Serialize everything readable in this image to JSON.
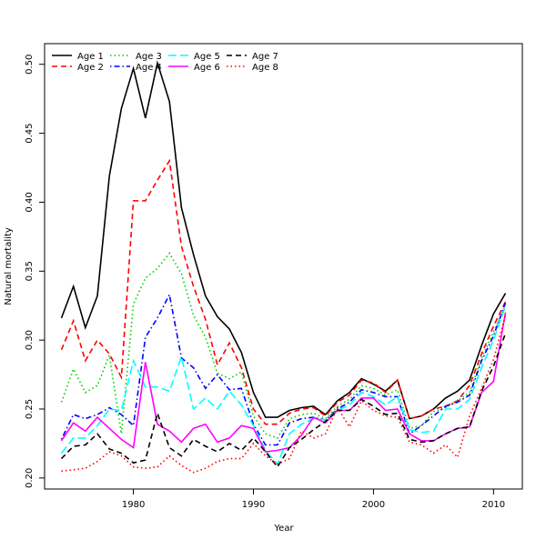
{
  "chart_data": {
    "type": "line",
    "title": "",
    "xlabel": "Year",
    "ylabel": "Natural mortality",
    "xlim": [
      1972.6,
      2012.4
    ],
    "ylim": [
      0.192,
      0.515
    ],
    "xticks": [
      1980,
      1990,
      2000,
      2010
    ],
    "yticks": [
      "0.20",
      "0.25",
      "0.30",
      "0.35",
      "0.40",
      "0.45",
      "0.50"
    ],
    "grid": false,
    "legend_position": "top-left",
    "x": [
      1974,
      1975,
      1976,
      1977,
      1978,
      1979,
      1980,
      1981,
      1982,
      1983,
      1984,
      1985,
      1986,
      1987,
      1988,
      1989,
      1990,
      1991,
      1992,
      1993,
      1994,
      1995,
      1996,
      1997,
      1998,
      1999,
      2000,
      2001,
      2002,
      2003,
      2004,
      2005,
      2006,
      2007,
      2008,
      2009,
      2010,
      2011
    ],
    "series": [
      {
        "name": "Age 1",
        "color": "#000000",
        "dash": "solid",
        "values": [
          0.316,
          0.339,
          0.309,
          0.332,
          0.419,
          0.468,
          0.497,
          0.461,
          0.501,
          0.473,
          0.396,
          0.362,
          0.332,
          0.317,
          0.308,
          0.291,
          0.262,
          0.244,
          0.244,
          0.249,
          0.251,
          0.252,
          0.246,
          0.256,
          0.262,
          0.272,
          0.268,
          0.263,
          0.271,
          0.243,
          0.245,
          0.25,
          0.258,
          0.263,
          0.271,
          0.296,
          0.319,
          0.334
        ]
      },
      {
        "name": "Age 2",
        "color": "#ff0000",
        "dash": "dashed",
        "values": [
          0.293,
          0.314,
          0.285,
          0.3,
          0.29,
          0.273,
          0.401,
          0.401,
          0.416,
          0.43,
          0.368,
          0.339,
          0.315,
          0.282,
          0.298,
          0.28,
          0.25,
          0.239,
          0.239,
          0.247,
          0.25,
          0.251,
          0.245,
          0.255,
          0.26,
          0.271,
          0.269,
          0.262,
          0.271,
          0.243,
          0.245,
          0.25,
          0.252,
          0.256,
          0.267,
          0.29,
          0.31,
          0.328
        ]
      },
      {
        "name": "Age 3",
        "color": "#00cd00",
        "dash": "dotted",
        "values": [
          0.255,
          0.279,
          0.262,
          0.267,
          0.289,
          0.232,
          0.326,
          0.345,
          0.352,
          0.363,
          0.348,
          0.318,
          0.302,
          0.276,
          0.272,
          0.277,
          0.245,
          0.232,
          0.229,
          0.243,
          0.246,
          0.247,
          0.243,
          0.252,
          0.257,
          0.267,
          0.265,
          0.26,
          0.264,
          0.236,
          0.238,
          0.248,
          0.251,
          0.256,
          0.262,
          0.287,
          0.306,
          0.325
        ]
      },
      {
        "name": "Age 4",
        "color": "#0000ff",
        "dash": "dotdash",
        "values": [
          0.228,
          0.246,
          0.243,
          0.246,
          0.251,
          0.246,
          0.238,
          0.302,
          0.316,
          0.333,
          0.287,
          0.28,
          0.265,
          0.275,
          0.264,
          0.265,
          0.239,
          0.224,
          0.224,
          0.24,
          0.243,
          0.244,
          0.242,
          0.25,
          0.255,
          0.264,
          0.262,
          0.259,
          0.259,
          0.232,
          0.238,
          0.245,
          0.252,
          0.255,
          0.26,
          0.285,
          0.303,
          0.327
        ]
      },
      {
        "name": "Age 5",
        "color": "#00ffff",
        "dash": "longdash",
        "values": [
          0.218,
          0.229,
          0.229,
          0.238,
          0.25,
          0.249,
          0.285,
          0.266,
          0.266,
          0.263,
          0.288,
          0.25,
          0.258,
          0.25,
          0.263,
          0.253,
          0.238,
          0.22,
          0.21,
          0.232,
          0.239,
          0.243,
          0.242,
          0.249,
          0.253,
          0.262,
          0.259,
          0.253,
          0.259,
          0.235,
          0.233,
          0.234,
          0.25,
          0.25,
          0.257,
          0.28,
          0.3,
          0.325
        ]
      },
      {
        "name": "Age 6",
        "color": "#ff00ff",
        "dash": "solid",
        "values": [
          0.227,
          0.24,
          0.234,
          0.244,
          0.236,
          0.228,
          0.222,
          0.284,
          0.239,
          0.234,
          0.226,
          0.236,
          0.239,
          0.226,
          0.229,
          0.238,
          0.236,
          0.219,
          0.22,
          0.222,
          0.231,
          0.244,
          0.24,
          0.249,
          0.249,
          0.258,
          0.258,
          0.249,
          0.25,
          0.232,
          0.227,
          0.227,
          0.232,
          0.236,
          0.237,
          0.262,
          0.27,
          0.32
        ]
      },
      {
        "name": "Age 7",
        "color": "#000000",
        "dash": "dashed",
        "values": [
          0.214,
          0.223,
          0.224,
          0.232,
          0.221,
          0.218,
          0.211,
          0.213,
          0.247,
          0.222,
          0.216,
          0.228,
          0.223,
          0.219,
          0.225,
          0.22,
          0.229,
          0.219,
          0.208,
          0.222,
          0.228,
          0.235,
          0.241,
          0.249,
          0.249,
          0.257,
          0.252,
          0.246,
          0.247,
          0.228,
          0.226,
          0.227,
          0.232,
          0.236,
          0.237,
          0.263,
          0.281,
          0.305
        ]
      },
      {
        "name": "Age 8",
        "color": "#ff0000",
        "dash": "dotted",
        "values": [
          0.205,
          0.206,
          0.207,
          0.212,
          0.219,
          0.216,
          0.208,
          0.207,
          0.208,
          0.216,
          0.209,
          0.204,
          0.207,
          0.212,
          0.214,
          0.214,
          0.225,
          0.216,
          0.21,
          0.214,
          0.234,
          0.229,
          0.232,
          0.251,
          0.237,
          0.256,
          0.249,
          0.245,
          0.244,
          0.226,
          0.224,
          0.218,
          0.224,
          0.215,
          0.245,
          0.265,
          0.286,
          0.318
        ]
      }
    ]
  }
}
